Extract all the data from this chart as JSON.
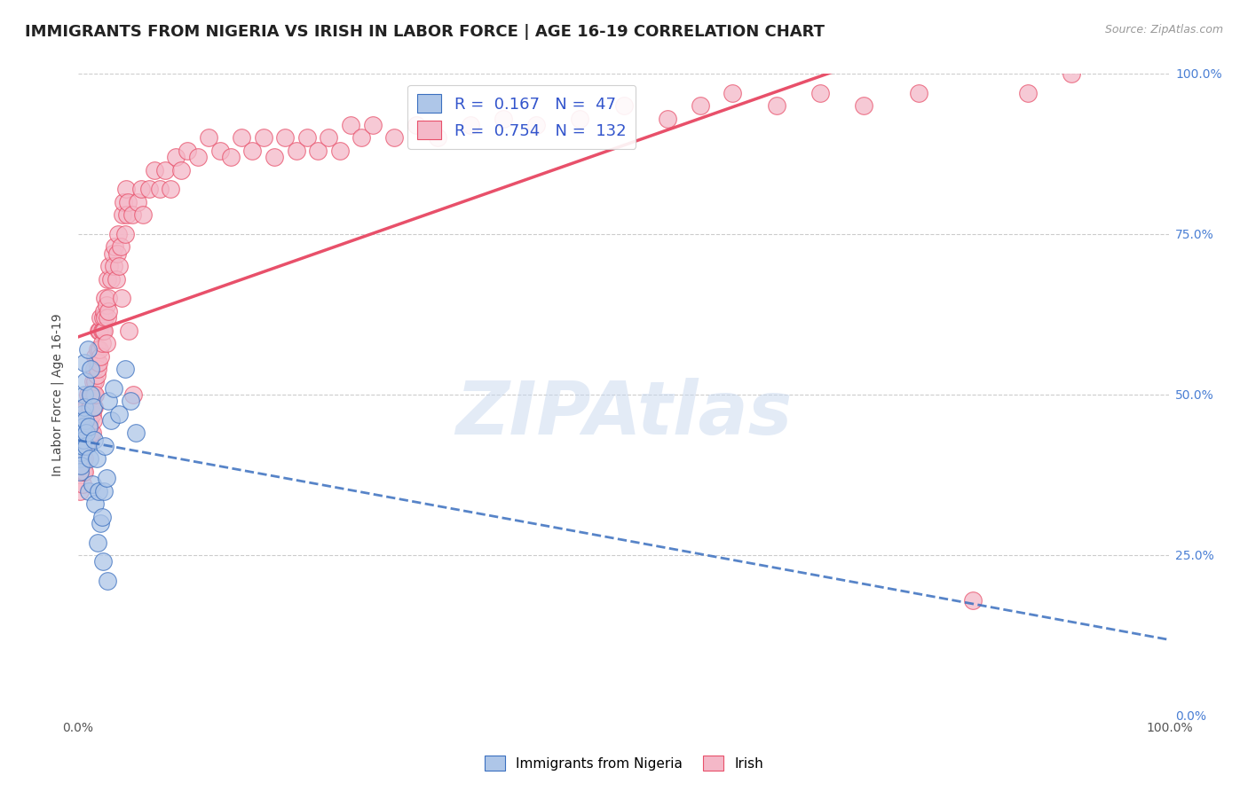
{
  "title": "IMMIGRANTS FROM NIGERIA VS IRISH IN LABOR FORCE | AGE 16-19 CORRELATION CHART",
  "source": "Source: ZipAtlas.com",
  "ylabel": "In Labor Force | Age 16-19",
  "watermark": "ZIPAtlas",
  "nigeria_R": 0.167,
  "nigeria_N": 47,
  "irish_R": 0.754,
  "irish_N": 132,
  "nigeria_color": "#aec6e8",
  "irish_color": "#f4b8c8",
  "nigeria_line_color": "#3a6fbf",
  "irish_line_color": "#e8506a",
  "nigeria_scatter": [
    [
      0.001,
      0.42
    ],
    [
      0.001,
      0.4
    ],
    [
      0.002,
      0.44
    ],
    [
      0.002,
      0.38
    ],
    [
      0.002,
      0.43
    ],
    [
      0.003,
      0.46
    ],
    [
      0.003,
      0.41
    ],
    [
      0.003,
      0.39
    ],
    [
      0.004,
      0.44
    ],
    [
      0.004,
      0.47
    ],
    [
      0.004,
      0.42
    ],
    [
      0.005,
      0.45
    ],
    [
      0.005,
      0.43
    ],
    [
      0.006,
      0.5
    ],
    [
      0.006,
      0.55
    ],
    [
      0.006,
      0.48
    ],
    [
      0.007,
      0.46
    ],
    [
      0.007,
      0.52
    ],
    [
      0.008,
      0.42
    ],
    [
      0.008,
      0.44
    ],
    [
      0.009,
      0.57
    ],
    [
      0.01,
      0.45
    ],
    [
      0.01,
      0.35
    ],
    [
      0.011,
      0.4
    ],
    [
      0.012,
      0.54
    ],
    [
      0.012,
      0.5
    ],
    [
      0.013,
      0.36
    ],
    [
      0.014,
      0.48
    ],
    [
      0.015,
      0.43
    ],
    [
      0.016,
      0.33
    ],
    [
      0.017,
      0.4
    ],
    [
      0.018,
      0.27
    ],
    [
      0.019,
      0.35
    ],
    [
      0.021,
      0.3
    ],
    [
      0.022,
      0.31
    ],
    [
      0.023,
      0.24
    ],
    [
      0.024,
      0.35
    ],
    [
      0.025,
      0.42
    ],
    [
      0.026,
      0.37
    ],
    [
      0.027,
      0.21
    ],
    [
      0.028,
      0.49
    ],
    [
      0.03,
      0.46
    ],
    [
      0.033,
      0.51
    ],
    [
      0.038,
      0.47
    ],
    [
      0.043,
      0.54
    ],
    [
      0.048,
      0.49
    ],
    [
      0.053,
      0.44
    ]
  ],
  "irish_scatter": [
    [
      0.001,
      0.42
    ],
    [
      0.001,
      0.38
    ],
    [
      0.002,
      0.4
    ],
    [
      0.002,
      0.35
    ],
    [
      0.002,
      0.44
    ],
    [
      0.003,
      0.38
    ],
    [
      0.003,
      0.42
    ],
    [
      0.004,
      0.4
    ],
    [
      0.004,
      0.44
    ],
    [
      0.004,
      0.36
    ],
    [
      0.005,
      0.42
    ],
    [
      0.005,
      0.38
    ],
    [
      0.005,
      0.45
    ],
    [
      0.006,
      0.44
    ],
    [
      0.006,
      0.4
    ],
    [
      0.006,
      0.38
    ],
    [
      0.006,
      0.46
    ],
    [
      0.007,
      0.44
    ],
    [
      0.007,
      0.43
    ],
    [
      0.007,
      0.48
    ],
    [
      0.007,
      0.46
    ],
    [
      0.008,
      0.44
    ],
    [
      0.008,
      0.46
    ],
    [
      0.008,
      0.48
    ],
    [
      0.009,
      0.46
    ],
    [
      0.009,
      0.5
    ],
    [
      0.009,
      0.44
    ],
    [
      0.01,
      0.47
    ],
    [
      0.01,
      0.46
    ],
    [
      0.01,
      0.44
    ],
    [
      0.011,
      0.46
    ],
    [
      0.011,
      0.43
    ],
    [
      0.011,
      0.48
    ],
    [
      0.012,
      0.5
    ],
    [
      0.012,
      0.48
    ],
    [
      0.012,
      0.44
    ],
    [
      0.013,
      0.47
    ],
    [
      0.013,
      0.44
    ],
    [
      0.013,
      0.5
    ],
    [
      0.014,
      0.46
    ],
    [
      0.014,
      0.48
    ],
    [
      0.014,
      0.52
    ],
    [
      0.015,
      0.5
    ],
    [
      0.015,
      0.48
    ],
    [
      0.015,
      0.54
    ],
    [
      0.016,
      0.52
    ],
    [
      0.016,
      0.5
    ],
    [
      0.016,
      0.56
    ],
    [
      0.017,
      0.55
    ],
    [
      0.017,
      0.53
    ],
    [
      0.018,
      0.57
    ],
    [
      0.018,
      0.54
    ],
    [
      0.019,
      0.55
    ],
    [
      0.019,
      0.6
    ],
    [
      0.02,
      0.57
    ],
    [
      0.02,
      0.6
    ],
    [
      0.021,
      0.62
    ],
    [
      0.021,
      0.56
    ],
    [
      0.022,
      0.6
    ],
    [
      0.022,
      0.58
    ],
    [
      0.023,
      0.62
    ],
    [
      0.023,
      0.6
    ],
    [
      0.024,
      0.63
    ],
    [
      0.024,
      0.6
    ],
    [
      0.025,
      0.65
    ],
    [
      0.025,
      0.62
    ],
    [
      0.026,
      0.58
    ],
    [
      0.026,
      0.64
    ],
    [
      0.027,
      0.62
    ],
    [
      0.027,
      0.68
    ],
    [
      0.028,
      0.63
    ],
    [
      0.028,
      0.65
    ],
    [
      0.029,
      0.7
    ],
    [
      0.03,
      0.68
    ],
    [
      0.032,
      0.72
    ],
    [
      0.033,
      0.7
    ],
    [
      0.034,
      0.73
    ],
    [
      0.035,
      0.68
    ],
    [
      0.036,
      0.72
    ],
    [
      0.037,
      0.75
    ],
    [
      0.038,
      0.7
    ],
    [
      0.039,
      0.73
    ],
    [
      0.04,
      0.65
    ],
    [
      0.041,
      0.78
    ],
    [
      0.042,
      0.8
    ],
    [
      0.043,
      0.75
    ],
    [
      0.044,
      0.82
    ],
    [
      0.045,
      0.78
    ],
    [
      0.046,
      0.8
    ],
    [
      0.047,
      0.6
    ],
    [
      0.05,
      0.78
    ],
    [
      0.051,
      0.5
    ],
    [
      0.055,
      0.8
    ],
    [
      0.058,
      0.82
    ],
    [
      0.06,
      0.78
    ],
    [
      0.065,
      0.82
    ],
    [
      0.07,
      0.85
    ],
    [
      0.075,
      0.82
    ],
    [
      0.08,
      0.85
    ],
    [
      0.085,
      0.82
    ],
    [
      0.09,
      0.87
    ],
    [
      0.095,
      0.85
    ],
    [
      0.1,
      0.88
    ],
    [
      0.11,
      0.87
    ],
    [
      0.12,
      0.9
    ],
    [
      0.13,
      0.88
    ],
    [
      0.14,
      0.87
    ],
    [
      0.15,
      0.9
    ],
    [
      0.16,
      0.88
    ],
    [
      0.17,
      0.9
    ],
    [
      0.18,
      0.87
    ],
    [
      0.19,
      0.9
    ],
    [
      0.2,
      0.88
    ],
    [
      0.21,
      0.9
    ],
    [
      0.22,
      0.88
    ],
    [
      0.23,
      0.9
    ],
    [
      0.24,
      0.88
    ],
    [
      0.25,
      0.92
    ],
    [
      0.26,
      0.9
    ],
    [
      0.27,
      0.92
    ],
    [
      0.29,
      0.9
    ],
    [
      0.31,
      0.92
    ],
    [
      0.33,
      0.9
    ],
    [
      0.36,
      0.92
    ],
    [
      0.39,
      0.93
    ],
    [
      0.42,
      0.92
    ],
    [
      0.46,
      0.93
    ],
    [
      0.5,
      0.95
    ],
    [
      0.54,
      0.93
    ],
    [
      0.57,
      0.95
    ],
    [
      0.6,
      0.97
    ],
    [
      0.64,
      0.95
    ],
    [
      0.68,
      0.97
    ],
    [
      0.72,
      0.95
    ],
    [
      0.77,
      0.97
    ],
    [
      0.82,
      0.18
    ],
    [
      0.87,
      0.97
    ],
    [
      0.91,
      1.0
    ]
  ],
  "xlim": [
    0.0,
    1.0
  ],
  "ylim": [
    0.0,
    1.0
  ],
  "xtick_positions": [
    0.0,
    1.0
  ],
  "xticklabels": [
    "0.0%",
    "100.0%"
  ],
  "ytick_positions": [
    0.0,
    0.25,
    0.5,
    0.75,
    1.0
  ],
  "yticklabels_right": [
    "0.0%",
    "25.0%",
    "50.0%",
    "75.0%",
    "100.0%"
  ],
  "grid_yticks": [
    0.25,
    0.5,
    0.75,
    1.0
  ],
  "grid_color": "#cccccc",
  "background_color": "#ffffff",
  "title_fontsize": 13,
  "label_fontsize": 10,
  "tick_fontsize": 10,
  "legend_fontsize": 13
}
